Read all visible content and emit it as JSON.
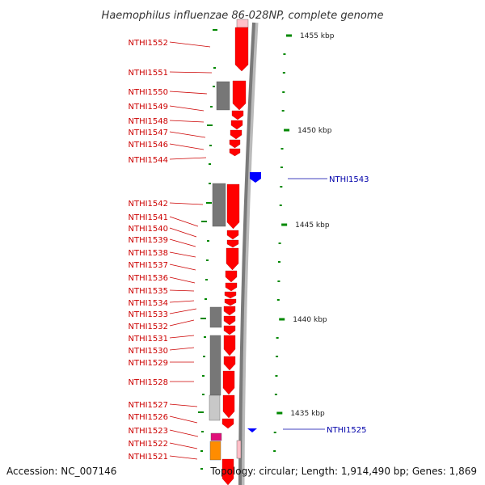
{
  "title": "Haemophilus influenzae 86-028NP, complete genome",
  "footer": {
    "accession": "Accession: NC_007146",
    "topology": "Topology: circular; Length: 1,914,490 bp; Genes: 1,869"
  },
  "colors": {
    "forward_gene": "#ff0000",
    "reverse_gene": "#0000ff",
    "label_red": "#cc0000",
    "label_blue": "#0000aa",
    "backbone": "#808080",
    "tick_green": "#008800",
    "gray_block": "#777777",
    "light_gray_block": "#c8c8c8",
    "magenta_block": "#e0107a",
    "orange_block": "#ff8c00"
  },
  "scale_ticks": [
    "1455 kbp",
    "1450 kbp",
    "1445 kbp",
    "1440 kbp",
    "1435 kbp"
  ],
  "red_labels": [
    "NTHI1552",
    "NTHI1551",
    "NTHI1550",
    "NTHI1549",
    "NTHI1548",
    "NTHI1547",
    "NTHI1546",
    "NTHI1544",
    "NTHI1542",
    "NTHI1541",
    "NTHI1540",
    "NTHI1539",
    "NTHI1538",
    "NTHI1537",
    "NTHI1536",
    "NTHI1535",
    "NTHI1534",
    "NTHI1533",
    "NTHI1532",
    "NTHI1531",
    "NTHI1530",
    "NTHI1529",
    "NTHI1528",
    "NTHI1527",
    "NTHI1526",
    "NTHI1523",
    "NTHI1522",
    "NTHI1521"
  ],
  "blue_labels": [
    "NTHI1543",
    "NTHI1525"
  ]
}
